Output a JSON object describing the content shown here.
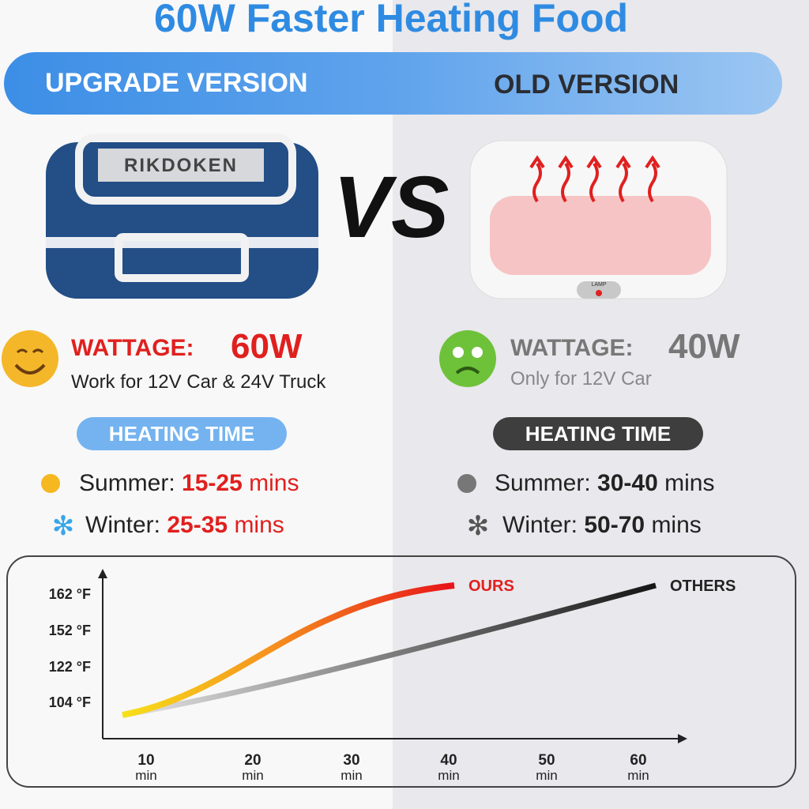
{
  "title": "60W Faster Heating Food",
  "banner": {
    "left": "UPGRADE VERSION",
    "right": "OLD VERSION"
  },
  "products": {
    "brand": "RIKDOKEN",
    "vs": "VS",
    "lamp": "LAMP"
  },
  "left": {
    "wattage_label": "WATTAGE:",
    "wattage": "60W",
    "note": "Work for 12V Car & 24V Truck",
    "heating_time": "HEATING TIME",
    "summer": {
      "label": "Summer:",
      "time": "15-25",
      "unit": "mins"
    },
    "winter": {
      "label": "Winter:",
      "time": "25-35",
      "unit": "mins"
    }
  },
  "right": {
    "wattage_label": "WATTAGE:",
    "wattage": "40W",
    "note": "Only for 12V Car",
    "heating_time": "HEATING TIME",
    "summer": {
      "label": "Summer:",
      "time": "30-40",
      "unit": "mins"
    },
    "winter": {
      "label": "Winter:",
      "time": "50-70",
      "unit": "mins"
    }
  },
  "chart": {
    "y_tick_labels": [
      "162 °F",
      "152 °F",
      "122 °F",
      "104 °F"
    ],
    "x_tick_labels": [
      "10",
      "20",
      "30",
      "40",
      "50",
      "60"
    ],
    "x_unit": "min",
    "series": [
      "OURS",
      "OTHERS"
    ]
  }
}
